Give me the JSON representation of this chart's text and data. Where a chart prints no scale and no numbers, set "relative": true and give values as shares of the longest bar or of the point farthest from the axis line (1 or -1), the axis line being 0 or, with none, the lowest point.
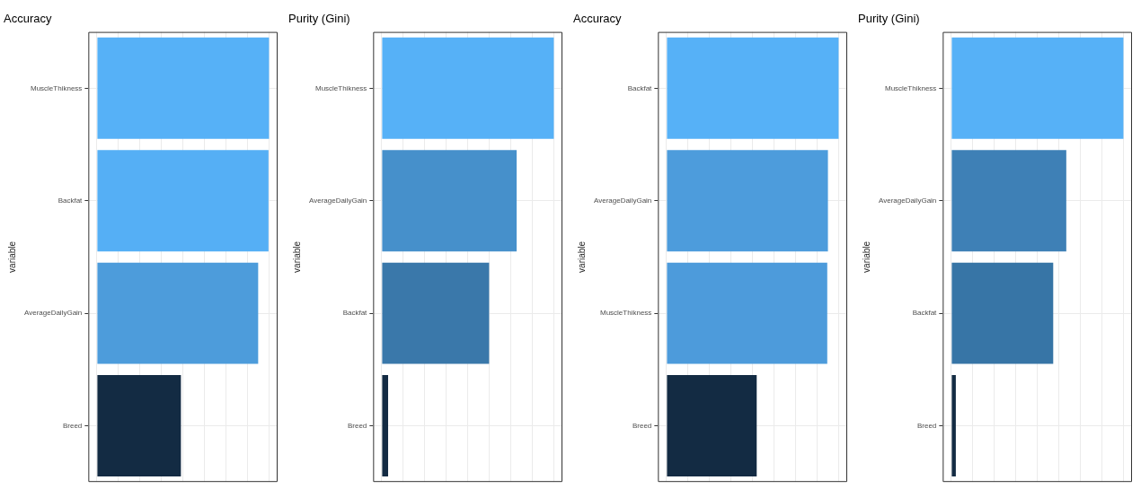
{
  "chart_data": [
    {
      "type": "bar",
      "orientation": "horizontal",
      "relative": true,
      "title": "Accuracy",
      "ylabel": "variable",
      "categories": [
        "MuscleThikness",
        "Backfat",
        "AverageDailyGain",
        "Breed"
      ],
      "values": [
        1,
        0.997,
        0.937,
        0.488
      ],
      "colors": [
        "#56b1f7",
        "#55aff5",
        "#4d9cdb",
        "#132b43"
      ],
      "grid": true,
      "tick_labels": "y"
    },
    {
      "type": "bar",
      "orientation": "horizontal",
      "relative": true,
      "title": "Purity (Gini)",
      "ylabel": "variable",
      "categories": [
        "MuscleThikness",
        "AverageDailyGain",
        "Backfat",
        "Breed"
      ],
      "values": [
        1,
        0.784,
        0.624,
        0.037
      ],
      "colors": [
        "#56b1f7",
        "#4690cb",
        "#3a78aa",
        "#132b43"
      ],
      "grid": true,
      "tick_labels": "y"
    },
    {
      "type": "bar",
      "orientation": "horizontal",
      "relative": true,
      "title": "Accuracy",
      "ylabel": "variable",
      "categories": [
        "Backfat",
        "AverageDailyGain",
        "MuscleThikness",
        "Breed"
      ],
      "values": [
        1,
        0.938,
        0.934,
        0.524
      ],
      "colors": [
        "#56b1f7",
        "#4d9cdc",
        "#4d9bdb",
        "#132b43"
      ],
      "grid": true,
      "tick_labels": "y"
    },
    {
      "type": "bar",
      "orientation": "horizontal",
      "relative": true,
      "title": "Purity (Gini)",
      "ylabel": "variable",
      "categories": [
        "MuscleThikness",
        "AverageDailyGain",
        "Backfat",
        "Breed"
      ],
      "values": [
        1,
        0.668,
        0.592,
        0.026
      ],
      "colors": [
        "#56b1f7",
        "#3e80b6",
        "#3775a6",
        "#132b43"
      ],
      "grid": true,
      "tick_labels": "y"
    }
  ]
}
